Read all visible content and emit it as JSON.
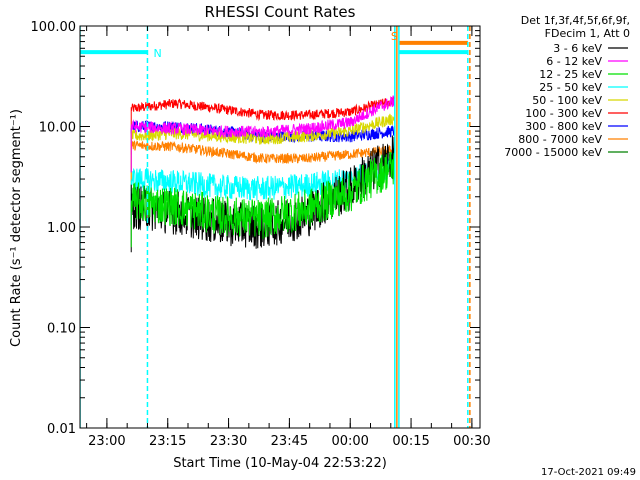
{
  "chart_data": {
    "type": "line",
    "title": "RHESSI Count Rates",
    "xlabel": "Start Time (10-May-04 22:53:22)",
    "ylabel": "Count Rate (s⁻¹ detector segment⁻¹)",
    "y_scale": "log",
    "ylim": [
      0.01,
      100
    ],
    "xlim": [
      "22:53:22",
      "00:32:00"
    ],
    "x_ticks": [
      "23:00",
      "23:15",
      "23:30",
      "23:45",
      "00:00",
      "00:15",
      "00:30"
    ],
    "y_ticks": [
      "0.01",
      "0.10",
      "1.00",
      "10.00",
      "100.00"
    ],
    "legend_header": [
      "Det 1f,3f,4f,5f,6f,9f,",
      "FDecim 1, Att 0"
    ],
    "legend_position": "right, outside plot",
    "series": [
      {
        "name": "3 - 6 keV",
        "color": "#000000",
        "start": "23:06",
        "end": "00:11",
        "level": [
          1.6,
          1.4,
          1.1,
          1.0,
          1.3,
          2.4,
          5.0
        ],
        "noise": 0.45
      },
      {
        "name": "6 - 12 keV",
        "color": "#ff00ff",
        "start": "23:06",
        "end": "00:11",
        "level": [
          10.0,
          9.5,
          9.0,
          8.8,
          9.5,
          11.0,
          18.0
        ],
        "noise": 0.12
      },
      {
        "name": "12 - 25 keV",
        "color": "#00e000",
        "start": "23:06",
        "end": "00:11",
        "level": [
          1.8,
          1.6,
          1.3,
          1.2,
          1.5,
          2.2,
          4.0
        ],
        "noise": 0.4
      },
      {
        "name": "25 - 50 keV",
        "color": "#00ffff",
        "start": "23:06",
        "end": "00:11",
        "level": [
          3.0,
          2.8,
          2.5,
          2.4,
          2.6,
          3.0,
          4.2
        ],
        "noise": 0.25
      },
      {
        "name": "50 - 100 keV",
        "color": "#d8d800",
        "start": "23:06",
        "end": "00:11",
        "level": [
          8.0,
          8.5,
          8.0,
          7.5,
          8.0,
          9.0,
          12.0
        ],
        "noise": 0.12
      },
      {
        "name": "100 - 300 keV",
        "color": "#ff0000",
        "start": "23:06",
        "end": "00:11",
        "level": [
          15.0,
          17.0,
          15.0,
          13.0,
          13.0,
          14.0,
          18.0
        ],
        "noise": 0.1
      },
      {
        "name": "300 - 800 keV",
        "color": "#0000ff",
        "start": "23:06",
        "end": "00:11",
        "level": [
          10.0,
          10.0,
          9.0,
          8.0,
          8.0,
          8.0,
          9.0
        ],
        "noise": 0.12
      },
      {
        "name": "800 - 7000 keV",
        "color": "#ff8000",
        "start": "23:06",
        "end": "00:11",
        "level": [
          6.5,
          6.3,
          5.5,
          4.8,
          4.8,
          5.3,
          5.8
        ],
        "noise": 0.1
      },
      {
        "name": "7000 - 15000 keV",
        "color": "#008000",
        "start": "23:06",
        "end": "00:11",
        "level": [
          0,
          0,
          0,
          0,
          0,
          0,
          0
        ],
        "noise": 0
      }
    ],
    "vertical_markers": [
      {
        "time": "22:53:22",
        "color": "#00ffff",
        "style": "solid"
      },
      {
        "time": "23:10",
        "color": "#00ffff",
        "style": "dashed"
      },
      {
        "time": "00:11",
        "color": "#00ffff",
        "style": "solid"
      },
      {
        "time": "00:12",
        "color": "#00ffff",
        "style": "solid"
      },
      {
        "time": "00:29",
        "color": "#00ffff",
        "style": "dashed"
      },
      {
        "time": "00:11:30",
        "color": "#ff8000",
        "style": "solid"
      },
      {
        "time": "00:29:30",
        "color": "#ff8000",
        "style": "dashed"
      }
    ],
    "state_bars": [
      {
        "label": "N",
        "color": "#00ffff",
        "start": "22:53:22",
        "end": "23:10",
        "value": 55
      },
      {
        "label": "",
        "color": "#00ffff",
        "start": "00:12",
        "end": "00:29",
        "value": 55
      },
      {
        "label": "S",
        "color": "#ff8000",
        "start": "00:12",
        "end": "00:29",
        "value": 68
      }
    ]
  },
  "footer": {
    "timestamp": "17-Oct-2021 09:49"
  }
}
